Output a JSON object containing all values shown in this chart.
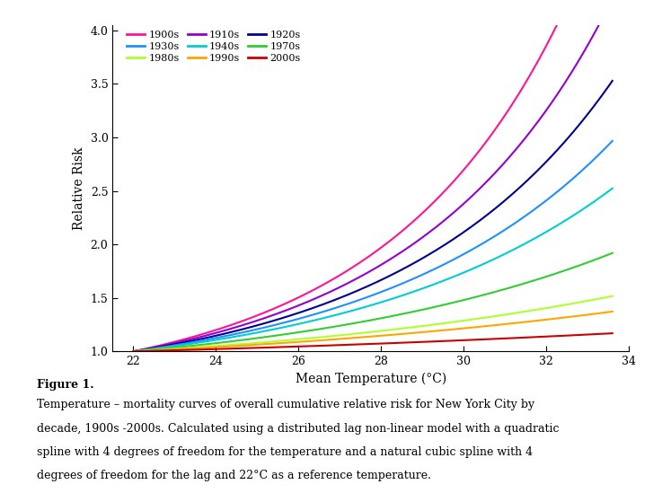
{
  "xlabel": "Mean Temperature (°C)",
  "ylabel": "Relative Risk",
  "xlim": [
    21.5,
    34.0
  ],
  "ylim": [
    1.0,
    4.0
  ],
  "xticks": [
    22,
    24,
    26,
    28,
    30,
    32,
    34
  ],
  "yticks": [
    1.0,
    1.5,
    2.0,
    2.5,
    3.0,
    3.5,
    4.0
  ],
  "ref_temp": 22.0,
  "decades": [
    "1900s",
    "1910s",
    "1920s",
    "1930s",
    "1940s",
    "1970s",
    "1980s",
    "1990s",
    "2000s"
  ],
  "colors": {
    "1900s": "#FF1493",
    "1910s": "#9400D3",
    "1920s": "#000090",
    "1930s": "#1E90FF",
    "1940s": "#00CED1",
    "1970s": "#32CD32",
    "1980s": "#ADFF2F",
    "1990s": "#FFA500",
    "2000s": "#CC0000"
  },
  "curve_params": {
    "1900s": {
      "b1": 0.08,
      "b2": 0.0055
    },
    "1910s": {
      "b1": 0.07,
      "b2": 0.0048
    },
    "1920s": {
      "b1": 0.06,
      "b2": 0.0042
    },
    "1930s": {
      "b1": 0.052,
      "b2": 0.0036
    },
    "1940s": {
      "b1": 0.045,
      "b2": 0.003
    },
    "1970s": {
      "b1": 0.033,
      "b2": 0.002
    },
    "1980s": {
      "b1": 0.022,
      "b2": 0.0012
    },
    "1990s": {
      "b1": 0.018,
      "b2": 0.0008
    },
    "2000s": {
      "b1": 0.01,
      "b2": 0.0003
    }
  },
  "legend_order": [
    "1900s",
    "1930s",
    "1980s",
    "1910s",
    "1940s",
    "1990s",
    "1920s",
    "1970s",
    "2000s"
  ],
  "figure_caption_bold": "Figure 1.",
  "figure_caption": "Temperature – mortality curves of overall cumulative relative risk for New York City by\ndecade, 1900s -2000s. Calculated using a distributed lag non-linear model with a quadratic\nspline with 4 degrees of freedom for the temperature and a natural cubic spline with 4\ndegrees of freedom for the lag and 22°C as a reference temperature.",
  "background_color": "#FFFFFF"
}
